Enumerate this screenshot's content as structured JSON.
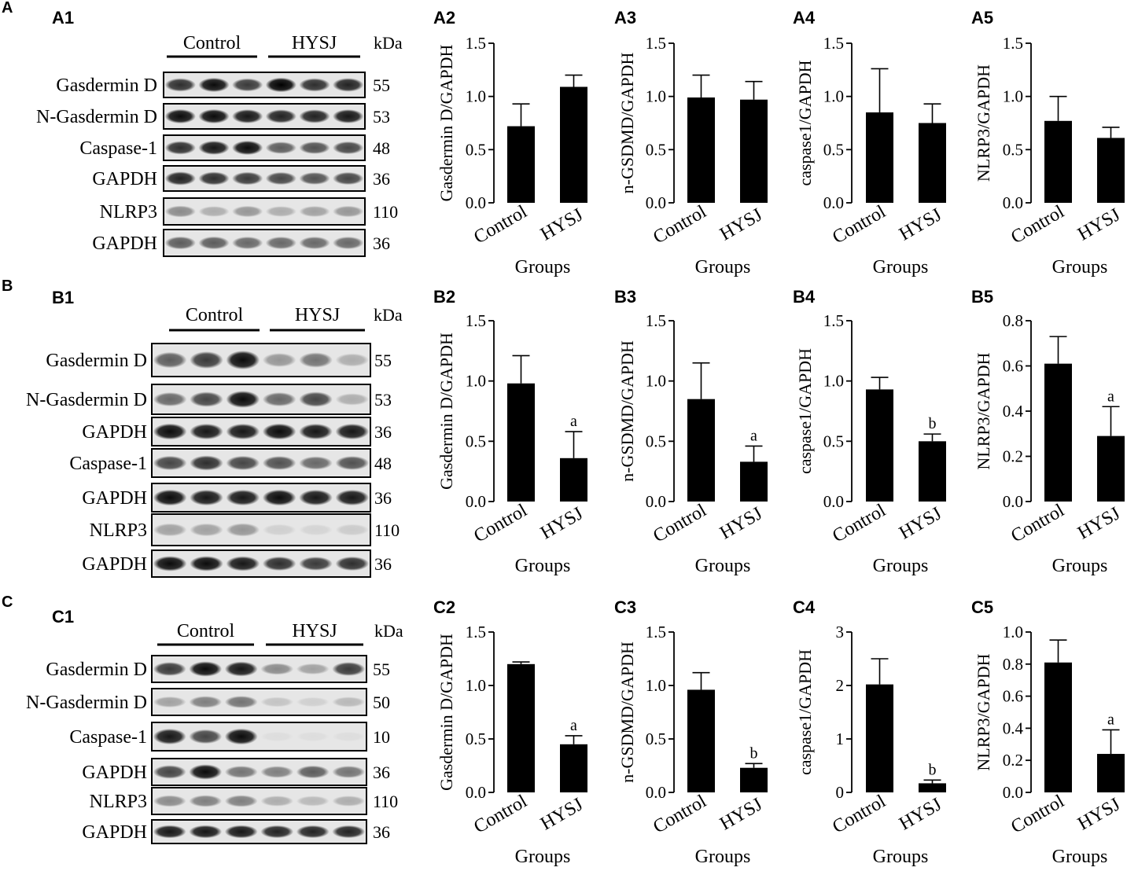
{
  "sections": [
    {
      "label": "A",
      "blot": {
        "label": "A1",
        "groups": [
          "Control",
          "HYSJ"
        ],
        "kda_header": "kDa",
        "rows": [
          {
            "name": "Gasdermin D",
            "kda": "55",
            "intensities": [
              0.8,
              0.95,
              0.75,
              1.0,
              0.8,
              0.85
            ]
          },
          {
            "name": "N-Gasdermin D",
            "kda": "53",
            "intensities": [
              0.95,
              0.95,
              0.9,
              0.85,
              0.85,
              0.9
            ]
          },
          {
            "name": "Caspase-1",
            "kda": "48",
            "intensities": [
              0.8,
              0.9,
              0.95,
              0.6,
              0.65,
              0.7
            ]
          },
          {
            "name": "GAPDH",
            "kda": "36",
            "intensities": [
              0.85,
              0.8,
              0.75,
              0.7,
              0.65,
              0.7
            ]
          },
          {
            "name": "NLRP3",
            "kda": "110",
            "intensities": [
              0.4,
              0.25,
              0.35,
              0.25,
              0.3,
              0.35
            ]
          },
          {
            "name": "GAPDH",
            "kda": "36",
            "intensities": [
              0.6,
              0.6,
              0.55,
              0.55,
              0.55,
              0.55
            ]
          }
        ]
      },
      "charts": [
        {
          "label": "A2",
          "ylabel": "Gasdermin D/GAPDH",
          "yticks": [
            "0.0",
            "0.5",
            "1.0",
            "1.5"
          ],
          "ylim": [
            0,
            1.5
          ],
          "values": [
            0.72,
            1.09
          ],
          "errors": [
            0.21,
            0.11
          ],
          "sig": [
            "",
            ""
          ]
        },
        {
          "label": "A3",
          "ylabel": "n-GSDMD/GAPDH",
          "yticks": [
            "0.0",
            "0.5",
            "1.0",
            "1.5"
          ],
          "ylim": [
            0,
            1.5
          ],
          "values": [
            0.99,
            0.97
          ],
          "errors": [
            0.21,
            0.17
          ],
          "sig": [
            "",
            ""
          ]
        },
        {
          "label": "A4",
          "ylabel": "caspase1/GAPDH",
          "yticks": [
            "0.0",
            "0.5",
            "1.0",
            "1.5"
          ],
          "ylim": [
            0,
            1.5
          ],
          "values": [
            0.85,
            0.75
          ],
          "errors": [
            0.41,
            0.18
          ],
          "sig": [
            "",
            ""
          ]
        },
        {
          "label": "A5",
          "ylabel": "NLRP3/GAPDH",
          "yticks": [
            "0.0",
            "0.5",
            "1.0",
            "1.5"
          ],
          "ylim": [
            0,
            1.5
          ],
          "values": [
            0.77,
            0.61
          ],
          "errors": [
            0.23,
            0.1
          ],
          "sig": [
            "",
            ""
          ]
        }
      ]
    },
    {
      "label": "B",
      "blot": {
        "label": "B1",
        "groups": [
          "Control",
          "HYSJ"
        ],
        "kda_header": "kDa",
        "rows": [
          {
            "name": "Gasdermin D",
            "kda": "55",
            "intensities": [
              0.6,
              0.75,
              0.95,
              0.35,
              0.5,
              0.25
            ]
          },
          {
            "name": "N-Gasdermin D",
            "kda": "53",
            "intensities": [
              0.55,
              0.7,
              0.95,
              0.55,
              0.7,
              0.25
            ]
          },
          {
            "name": "GAPDH",
            "kda": "36",
            "intensities": [
              0.95,
              0.9,
              0.9,
              0.95,
              0.9,
              0.9
            ]
          },
          {
            "name": "Caspase-1",
            "kda": "48",
            "intensities": [
              0.7,
              0.8,
              0.7,
              0.65,
              0.55,
              0.65
            ]
          },
          {
            "name": "GAPDH",
            "kda": "36",
            "intensities": [
              0.95,
              0.9,
              0.9,
              0.95,
              0.9,
              0.9
            ]
          },
          {
            "name": "NLRP3",
            "kda": "110",
            "intensities": [
              0.3,
              0.3,
              0.35,
              0.1,
              0.08,
              0.12
            ]
          },
          {
            "name": "GAPDH",
            "kda": "36",
            "intensities": [
              0.95,
              0.95,
              0.9,
              0.8,
              0.75,
              0.8
            ]
          }
        ]
      },
      "charts": [
        {
          "label": "B2",
          "ylabel": "Gasdermin D/GAPDH",
          "yticks": [
            "0.0",
            "0.5",
            "1.0",
            "1.5"
          ],
          "ylim": [
            0,
            1.5
          ],
          "values": [
            0.98,
            0.36
          ],
          "errors": [
            0.23,
            0.22
          ],
          "sig": [
            "",
            "a"
          ]
        },
        {
          "label": "B3",
          "ylabel": "n-GSDMD/GAPDH",
          "yticks": [
            "0.0",
            "0.5",
            "1.0",
            "1.5"
          ],
          "ylim": [
            0,
            1.5
          ],
          "values": [
            0.85,
            0.33
          ],
          "errors": [
            0.3,
            0.13
          ],
          "sig": [
            "",
            "a"
          ]
        },
        {
          "label": "B4",
          "ylabel": "caspase1/GAPDH",
          "yticks": [
            "0.0",
            "0.5",
            "1.0",
            "1.5"
          ],
          "ylim": [
            0,
            1.5
          ],
          "values": [
            0.93,
            0.5
          ],
          "errors": [
            0.1,
            0.06
          ],
          "sig": [
            "",
            "b"
          ]
        },
        {
          "label": "B5",
          "ylabel": "NLRP3/GAPDH",
          "yticks": [
            "0.0",
            "0.2",
            "0.4",
            "0.6",
            "0.8"
          ],
          "ylim": [
            0,
            0.8
          ],
          "values": [
            0.61,
            0.29
          ],
          "errors": [
            0.12,
            0.13
          ],
          "sig": [
            "",
            "a"
          ]
        }
      ]
    },
    {
      "label": "C",
      "blot": {
        "label": "C1",
        "groups": [
          "Control",
          "HYSJ"
        ],
        "kda_header": "kDa",
        "rows": [
          {
            "name": "Gasdermin D",
            "kda": "55",
            "intensities": [
              0.75,
              0.95,
              0.9,
              0.4,
              0.3,
              0.75
            ]
          },
          {
            "name": "N-Gasdermin D",
            "kda": "50",
            "intensities": [
              0.3,
              0.45,
              0.5,
              0.15,
              0.1,
              0.2
            ]
          },
          {
            "name": "Caspase-1",
            "kda": "10",
            "intensities": [
              0.9,
              0.7,
              0.95,
              0.03,
              0.03,
              0.03
            ]
          },
          {
            "name": "GAPDH",
            "kda": "36",
            "intensities": [
              0.7,
              0.95,
              0.5,
              0.45,
              0.6,
              0.5
            ]
          },
          {
            "name": "NLRP3",
            "kda": "110",
            "intensities": [
              0.4,
              0.45,
              0.45,
              0.25,
              0.2,
              0.25
            ]
          },
          {
            "name": "GAPDH",
            "kda": "36",
            "intensities": [
              0.9,
              0.9,
              0.9,
              0.85,
              0.85,
              0.85
            ]
          }
        ]
      },
      "charts": [
        {
          "label": "C2",
          "ylabel": "Gasdermin D/GAPDH",
          "yticks": [
            "0.0",
            "0.5",
            "1.0",
            "1.5"
          ],
          "ylim": [
            0,
            1.5
          ],
          "values": [
            1.2,
            0.45
          ],
          "errors": [
            0.02,
            0.08
          ],
          "sig": [
            "",
            "a"
          ]
        },
        {
          "label": "C3",
          "ylabel": "n-GSDMD/GAPDH",
          "yticks": [
            "0.0",
            "0.5",
            "1.0",
            "1.5"
          ],
          "ylim": [
            0,
            1.5
          ],
          "values": [
            0.96,
            0.23
          ],
          "errors": [
            0.16,
            0.04
          ],
          "sig": [
            "",
            "b"
          ]
        },
        {
          "label": "C4",
          "ylabel": "caspase1/GAPDH",
          "yticks": [
            "0",
            "1",
            "2",
            "3"
          ],
          "ylim": [
            0,
            3
          ],
          "values": [
            2.02,
            0.17
          ],
          "errors": [
            0.48,
            0.06
          ],
          "sig": [
            "",
            "b"
          ]
        },
        {
          "label": "C5",
          "ylabel": "NLRP3/GAPDH",
          "yticks": [
            "0.0",
            "0.2",
            "0.4",
            "0.6",
            "0.8",
            "1.0"
          ],
          "ylim": [
            0,
            1.0
          ],
          "values": [
            0.81,
            0.24
          ],
          "errors": [
            0.14,
            0.15
          ],
          "sig": [
            "",
            "a"
          ]
        }
      ]
    }
  ],
  "x_categories": [
    "Control",
    "HYSJ"
  ],
  "x_axis_title": "Groups",
  "chart_data": [
    {
      "label": "A2",
      "type": "bar",
      "categories": [
        "Control",
        "HYSJ"
      ],
      "values": [
        0.72,
        1.09
      ],
      "errors": [
        0.21,
        0.11
      ],
      "xlabel": "Groups",
      "ylabel": "Gasdermin D/GAPDH",
      "ylim": [
        0,
        1.5
      ]
    },
    {
      "label": "A3",
      "type": "bar",
      "categories": [
        "Control",
        "HYSJ"
      ],
      "values": [
        0.99,
        0.97
      ],
      "errors": [
        0.21,
        0.17
      ],
      "xlabel": "Groups",
      "ylabel": "n-GSDMD/GAPDH",
      "ylim": [
        0,
        1.5
      ]
    },
    {
      "label": "A4",
      "type": "bar",
      "categories": [
        "Control",
        "HYSJ"
      ],
      "values": [
        0.85,
        0.75
      ],
      "errors": [
        0.41,
        0.18
      ],
      "xlabel": "Groups",
      "ylabel": "caspase1/GAPDH",
      "ylim": [
        0,
        1.5
      ]
    },
    {
      "label": "A5",
      "type": "bar",
      "categories": [
        "Control",
        "HYSJ"
      ],
      "values": [
        0.77,
        0.61
      ],
      "errors": [
        0.23,
        0.1
      ],
      "xlabel": "Groups",
      "ylabel": "NLRP3/GAPDH",
      "ylim": [
        0,
        1.5
      ]
    },
    {
      "label": "B2",
      "type": "bar",
      "categories": [
        "Control",
        "HYSJ"
      ],
      "values": [
        0.98,
        0.36
      ],
      "errors": [
        0.23,
        0.22
      ],
      "annotations": [
        "",
        "a"
      ],
      "xlabel": "Groups",
      "ylabel": "Gasdermin D/GAPDH",
      "ylim": [
        0,
        1.5
      ]
    },
    {
      "label": "B3",
      "type": "bar",
      "categories": [
        "Control",
        "HYSJ"
      ],
      "values": [
        0.85,
        0.33
      ],
      "errors": [
        0.3,
        0.13
      ],
      "annotations": [
        "",
        "a"
      ],
      "xlabel": "Groups",
      "ylabel": "n-GSDMD/GAPDH",
      "ylim": [
        0,
        1.5
      ]
    },
    {
      "label": "B4",
      "type": "bar",
      "categories": [
        "Control",
        "HYSJ"
      ],
      "values": [
        0.93,
        0.5
      ],
      "errors": [
        0.1,
        0.06
      ],
      "annotations": [
        "",
        "b"
      ],
      "xlabel": "Groups",
      "ylabel": "caspase1/GAPDH",
      "ylim": [
        0,
        1.5
      ]
    },
    {
      "label": "B5",
      "type": "bar",
      "categories": [
        "Control",
        "HYSJ"
      ],
      "values": [
        0.61,
        0.29
      ],
      "errors": [
        0.12,
        0.13
      ],
      "annotations": [
        "",
        "a"
      ],
      "xlabel": "Groups",
      "ylabel": "NLRP3/GAPDH",
      "ylim": [
        0,
        0.8
      ]
    },
    {
      "label": "C2",
      "type": "bar",
      "categories": [
        "Control",
        "HYSJ"
      ],
      "values": [
        1.2,
        0.45
      ],
      "errors": [
        0.02,
        0.08
      ],
      "annotations": [
        "",
        "a"
      ],
      "xlabel": "Groups",
      "ylabel": "Gasdermin D/GAPDH",
      "ylim": [
        0,
        1.5
      ]
    },
    {
      "label": "C3",
      "type": "bar",
      "categories": [
        "Control",
        "HYSJ"
      ],
      "values": [
        0.96,
        0.23
      ],
      "errors": [
        0.16,
        0.04
      ],
      "annotations": [
        "",
        "b"
      ],
      "xlabel": "Groups",
      "ylabel": "n-GSDMD/GAPDH",
      "ylim": [
        0,
        1.5
      ]
    },
    {
      "label": "C4",
      "type": "bar",
      "categories": [
        "Control",
        "HYSJ"
      ],
      "values": [
        2.02,
        0.17
      ],
      "errors": [
        0.48,
        0.06
      ],
      "annotations": [
        "",
        "b"
      ],
      "xlabel": "Groups",
      "ylabel": "caspase1/GAPDH",
      "ylim": [
        0,
        3
      ]
    },
    {
      "label": "C5",
      "type": "bar",
      "categories": [
        "Control",
        "HYSJ"
      ],
      "values": [
        0.81,
        0.24
      ],
      "errors": [
        0.14,
        0.15
      ],
      "annotations": [
        "",
        "a"
      ],
      "xlabel": "Groups",
      "ylabel": "NLRP3/GAPDH",
      "ylim": [
        0,
        1.0
      ]
    }
  ]
}
